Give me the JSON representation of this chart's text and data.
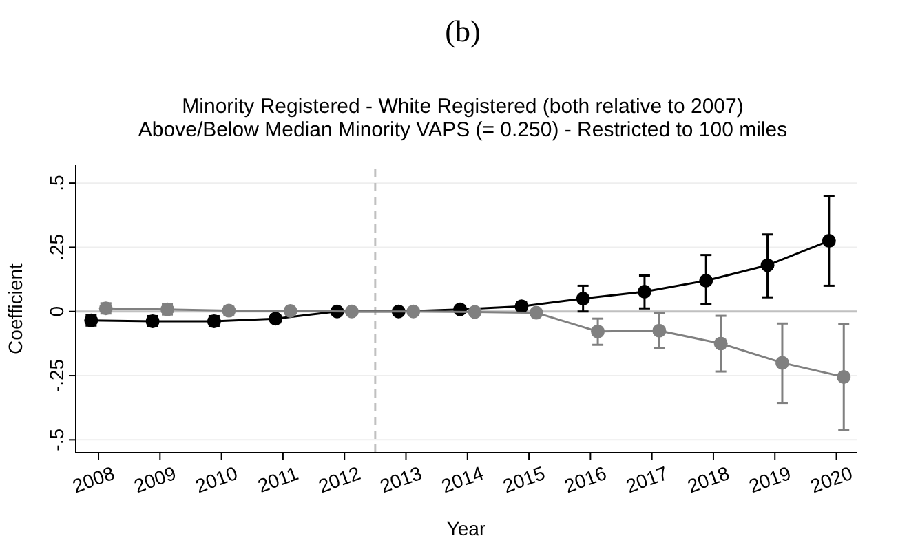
{
  "chart_data": {
    "type": "line",
    "title": "Minority Registered - White Registered (both relative to 2007)",
    "subtitle": "Above/Below Median Minority VAPS (= 0.250) - Restricted to 100 miles",
    "annotations": [
      "(b)"
    ],
    "xlabel": "Year",
    "ylabel": "Coefficient",
    "xlim": [
      2007.63,
      2020.33
    ],
    "xticks": [
      2008,
      2009,
      2010,
      2011,
      2012,
      2013,
      2014,
      2015,
      2016,
      2017,
      2018,
      2019,
      2020
    ],
    "ylim": [
      -0.55,
      0.57
    ],
    "yticks": [
      {
        "value": 0.5,
        "label": ".5"
      },
      {
        "value": 0.25,
        "label": ".25"
      },
      0,
      {
        "value": -0.25,
        "label": "-.25"
      },
      {
        "value": -0.5,
        "label": "-.5"
      }
    ],
    "grid": "y",
    "marker": "circle",
    "line_style": "solid",
    "ref_lines": [
      {
        "axis": "y",
        "value": 0,
        "color": "#c0c0c0",
        "line_style": "solid"
      },
      {
        "axis": "x",
        "value": 2012.5,
        "color": "#c0c0c0",
        "line_style": "dashed"
      }
    ],
    "series": [
      {
        "color": "#000000",
        "x": [
          2007.88,
          2008.88,
          2009.88,
          2010.88,
          2011.88,
          2012.88,
          2013.88,
          2014.88,
          2015.88,
          2016.88,
          2017.88,
          2018.88,
          2019.88
        ],
        "values": [
          -0.035,
          -0.038,
          -0.038,
          -0.028,
          0,
          0,
          0.008,
          0.02,
          0.05,
          0.077,
          0.12,
          0.18,
          0.275
        ],
        "errors": [
          0.02,
          0.02,
          0.02,
          0.015,
          null,
          0.008,
          0.008,
          0.015,
          [
            0,
            0.1
          ],
          [
            0.012,
            0.14
          ],
          [
            0.03,
            0.22
          ],
          [
            0.055,
            0.3
          ],
          [
            0.1,
            0.45
          ]
        ]
      },
      {
        "color": "#808080",
        "x": [
          2008.12,
          2009.12,
          2010.12,
          2011.12,
          2012.12,
          2013.12,
          2014.12,
          2015.12,
          2016.12,
          2017.12,
          2018.12,
          2019.12,
          2020.12
        ],
        "values": [
          0.012,
          0.008,
          0.003,
          0.002,
          0,
          0,
          -0.002,
          -0.005,
          -0.078,
          -0.075,
          -0.125,
          -0.2,
          -0.255
        ],
        "errors": [
          0.02,
          0.02,
          0.015,
          0.01,
          null,
          0.008,
          0.008,
          0.01,
          [
            -0.13,
            -0.028
          ],
          [
            -0.144,
            -0.005
          ],
          [
            -0.234,
            -0.017
          ],
          [
            -0.356,
            -0.047
          ],
          [
            -0.462,
            -0.05
          ]
        ]
      }
    ]
  }
}
